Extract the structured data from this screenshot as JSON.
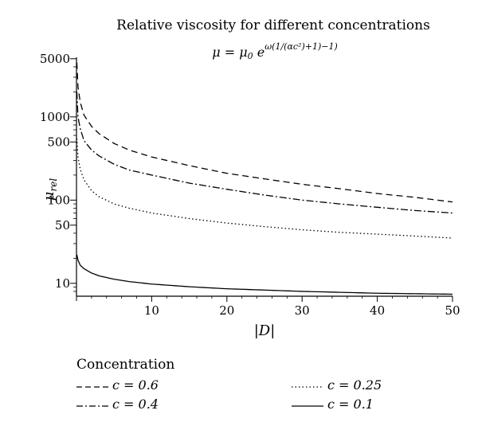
{
  "chart_data": {
    "type": "line",
    "title": "Relative viscosity for different concentrations",
    "subtitle_main": "μ = μ",
    "subtitle_sub": "0",
    "subtitle_base": " e",
    "subtitle_exponent": "ω(1/(αc²)+1)−1)",
    "xlabel": "|D|",
    "ylabel_main": "μ",
    "ylabel_sub": "rel",
    "xlim": [
      0,
      50
    ],
    "ylim": [
      7,
      5200
    ],
    "yscale": "log",
    "x_ticks": [
      10,
      20,
      30,
      40,
      50
    ],
    "x_tick_labels": [
      "10",
      "20",
      "30",
      "40",
      "50"
    ],
    "y_ticks": [
      10,
      50,
      100,
      500,
      1000,
      5000
    ],
    "y_tick_labels": [
      "10",
      "50",
      "100",
      "500",
      "1000",
      "5000"
    ],
    "x": [
      0.05,
      0.2,
      0.5,
      1,
      2,
      3,
      5,
      7,
      10,
      15,
      20,
      25,
      30,
      35,
      40,
      45,
      50
    ],
    "series": [
      {
        "key": "c06",
        "style": "dashed",
        "values": [
          4500,
          2300,
          1500,
          1050,
          770,
          630,
          480,
          400,
          330,
          260,
          210,
          180,
          155,
          137,
          120,
          108,
          95
        ]
      },
      {
        "key": "c04",
        "style": "dashdot",
        "values": [
          2000,
          1000,
          720,
          520,
          400,
          340,
          270,
          230,
          200,
          160,
          135,
          115,
          100,
          90,
          82,
          75,
          70
        ]
      },
      {
        "key": "c025",
        "style": "dotted",
        "values": [
          550,
          330,
          235,
          175,
          130,
          110,
          90,
          80,
          70,
          60,
          53,
          48,
          44,
          41,
          39,
          37,
          35
        ]
      },
      {
        "key": "c01",
        "style": "solid",
        "values": [
          22,
          19,
          16.5,
          15,
          13.3,
          12.3,
          11.2,
          10.5,
          9.8,
          9.1,
          8.6,
          8.3,
          8.0,
          7.8,
          7.6,
          7.5,
          7.4
        ]
      }
    ],
    "legend": {
      "title": "Concentration",
      "placement": "bottom",
      "items": [
        {
          "series": "c06",
          "style": "dashed",
          "label": "c = 0.6"
        },
        {
          "series": "c025",
          "style": "dotted",
          "label": "c = 0.25"
        },
        {
          "series": "c04",
          "style": "dashdot",
          "label": "c = 0.4"
        },
        {
          "series": "c01",
          "style": "solid",
          "label": "c = 0.1"
        }
      ]
    },
    "grid": false
  }
}
